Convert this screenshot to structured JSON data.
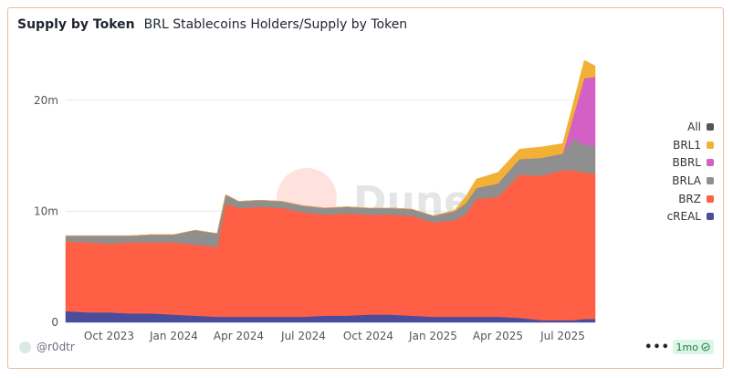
{
  "header": {
    "title": "Supply by Token",
    "subtitle": "BRL Stablecoins Holders/Supply by Token"
  },
  "footer": {
    "author": "@r0dtr",
    "more_label": "•••",
    "refresh_badge": "1mo"
  },
  "watermark": "Dune",
  "chart_data": {
    "type": "area",
    "stacked": true,
    "title": "BRL Stablecoins Holders/Supply by Token",
    "y_unit": "millions",
    "ylim": [
      0,
      25
    ],
    "y_ticks": [
      {
        "value": 0,
        "label": "0"
      },
      {
        "value": 10,
        "label": "10m"
      },
      {
        "value": 20,
        "label": "20m"
      }
    ],
    "x_range": [
      2023.583,
      2025.625
    ],
    "x_ticks": [
      {
        "value": 2023.75,
        "label": "Oct 2023"
      },
      {
        "value": 2024.0,
        "label": "Jan 2024"
      },
      {
        "value": 2024.25,
        "label": "Apr 2024"
      },
      {
        "value": 2024.5,
        "label": "Jul 2024"
      },
      {
        "value": 2024.75,
        "label": "Oct 2024"
      },
      {
        "value": 2025.0,
        "label": "Jan 2025"
      },
      {
        "value": 2025.25,
        "label": "Apr 2025"
      },
      {
        "value": 2025.5,
        "label": "Jul 2025"
      }
    ],
    "x": [
      2023.583,
      2023.667,
      2023.75,
      2023.833,
      2023.917,
      2024.0,
      2024.083,
      2024.167,
      2024.2,
      2024.25,
      2024.333,
      2024.417,
      2024.5,
      2024.583,
      2024.667,
      2024.75,
      2024.833,
      2024.917,
      2025.0,
      2025.083,
      2025.125,
      2025.167,
      2025.25,
      2025.333,
      2025.417,
      2025.5,
      2025.54,
      2025.583,
      2025.625
    ],
    "series": [
      {
        "name": "cREAL",
        "color": "#4b4d9c",
        "values": [
          1.0,
          0.9,
          0.9,
          0.8,
          0.8,
          0.7,
          0.6,
          0.5,
          0.5,
          0.5,
          0.5,
          0.5,
          0.5,
          0.6,
          0.6,
          0.7,
          0.7,
          0.6,
          0.5,
          0.5,
          0.5,
          0.5,
          0.5,
          0.4,
          0.2,
          0.2,
          0.2,
          0.3,
          0.3
        ]
      },
      {
        "name": "BRZ",
        "color": "#ff5f45",
        "values": [
          6.3,
          6.3,
          6.2,
          6.4,
          6.4,
          6.5,
          6.4,
          6.3,
          10.2,
          9.8,
          9.9,
          9.8,
          9.4,
          9.1,
          9.2,
          9.0,
          9.0,
          9.0,
          8.5,
          8.7,
          9.2,
          10.6,
          10.8,
          12.9,
          13.0,
          13.5,
          13.5,
          13.2,
          13.1
        ]
      },
      {
        "name": "BRLA",
        "color": "#8f8f8f",
        "values": [
          0.5,
          0.6,
          0.7,
          0.6,
          0.7,
          0.7,
          1.3,
          1.2,
          0.8,
          0.6,
          0.6,
          0.6,
          0.6,
          0.6,
          0.6,
          0.6,
          0.6,
          0.6,
          0.6,
          0.8,
          1.0,
          1.0,
          1.2,
          1.4,
          1.6,
          1.5,
          2.8,
          2.5,
          2.5
        ]
      },
      {
        "name": "BBRL",
        "color": "#d45fc5",
        "values": [
          0,
          0,
          0,
          0,
          0,
          0,
          0,
          0,
          0,
          0,
          0,
          0,
          0,
          0,
          0,
          0,
          0,
          0,
          0,
          0,
          0,
          0,
          0,
          0,
          0,
          0,
          2.0,
          6.0,
          6.2
        ]
      },
      {
        "name": "BRL1",
        "color": "#f2b035",
        "values": [
          0,
          0,
          0,
          0,
          0,
          0,
          0,
          0,
          0,
          0,
          0,
          0,
          0,
          0,
          0,
          0,
          0,
          0,
          0,
          0.1,
          0.6,
          0.8,
          1.0,
          0.9,
          1.0,
          0.9,
          1.2,
          1.6,
          1.0
        ]
      }
    ],
    "legend": [
      {
        "name": "All",
        "color": "#555555"
      },
      {
        "name": "BRL1",
        "color": "#f2b035"
      },
      {
        "name": "BBRL",
        "color": "#d45fc5"
      },
      {
        "name": "BRLA",
        "color": "#8f8f8f"
      },
      {
        "name": "BRZ",
        "color": "#ff5f45"
      },
      {
        "name": "cREAL",
        "color": "#4b4d9c"
      }
    ],
    "legend_position": "right"
  }
}
